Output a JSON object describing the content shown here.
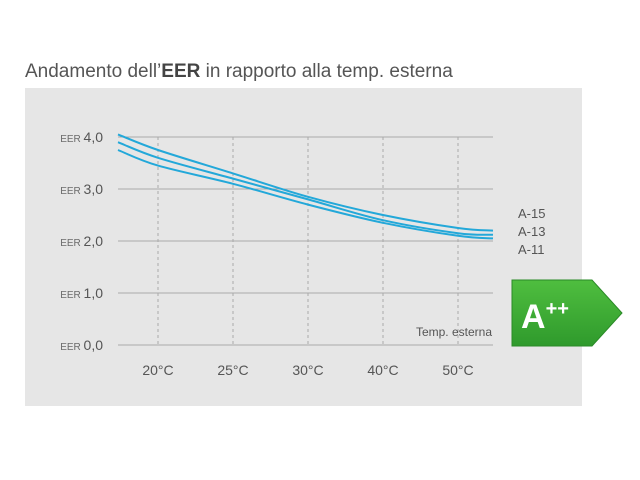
{
  "title": {
    "prefix": "Andamento dell’",
    "bold": "EER",
    "suffix": " in rapporto alla temp. esterna"
  },
  "chart_data": {
    "type": "line",
    "title": "Andamento dell’EER in rapporto alla temp. esterna",
    "xlabel": "Temp. esterna",
    "ylabel": "EER",
    "y_prefix": "EER",
    "x_ticks": [
      "20°C",
      "25°C",
      "30°C",
      "40°C",
      "50°C"
    ],
    "y_ticks": [
      "0,0",
      "1,0",
      "2,0",
      "3,0",
      "4,0"
    ],
    "ylim": [
      0,
      4
    ],
    "grid": true,
    "legend": "right",
    "x_positions": [
      "start",
      "20°C",
      "25°C",
      "30°C",
      "40°C",
      "50°C",
      "end"
    ],
    "series": [
      {
        "name": "A-15",
        "values": [
          4.05,
          3.75,
          3.3,
          2.85,
          2.5,
          2.25,
          2.2
        ]
      },
      {
        "name": "A-13",
        "values": [
          3.9,
          3.6,
          3.2,
          2.8,
          2.4,
          2.15,
          2.12
        ]
      },
      {
        "name": "A-11",
        "values": [
          3.75,
          3.45,
          3.1,
          2.7,
          2.35,
          2.1,
          2.05
        ]
      }
    ]
  },
  "badge": {
    "label": "A",
    "superscript": "++",
    "color": "#3aa935"
  },
  "colors": {
    "panel": "#e6e6e6",
    "line": "#23a8d9",
    "grid": "#aaaaaa"
  }
}
